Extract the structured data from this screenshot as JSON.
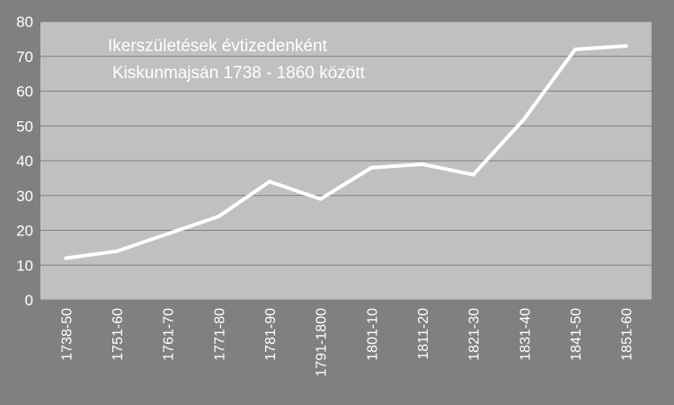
{
  "chart_data": {
    "type": "line",
    "title_lines": [
      "Ikerszületések évtizedenként",
      "Kiskunmajsán 1738 - 1860 között"
    ],
    "xlabel": "",
    "ylabel": "",
    "categories": [
      "1738-50",
      "1751-60",
      "1761-70",
      "1771-80",
      "1781-90",
      "1791-1800",
      "1801-10",
      "1811-20",
      "1821-30",
      "1831-40",
      "1841-50",
      "1851-60"
    ],
    "values": [
      12,
      14,
      19,
      24,
      34,
      29,
      38,
      39,
      36,
      52,
      72,
      73
    ],
    "ylim": [
      0,
      80
    ],
    "yticks": [
      "0",
      "10",
      "20",
      "30",
      "40",
      "50",
      "60",
      "70",
      "80"
    ],
    "grid": true,
    "legend": "none",
    "colors": {
      "background": "#808080",
      "plot_area": "#c0c0c0",
      "gridline": "#808080",
      "line": "#ffffff",
      "text": "#ffffff"
    }
  }
}
